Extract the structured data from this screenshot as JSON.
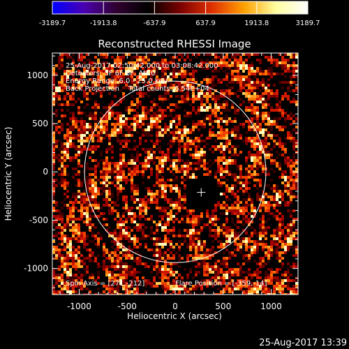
{
  "chart_data": {
    "type": "heatmap",
    "title": "Reconstructed RHESSI Image",
    "xlabel": "Heliocentric X (arcsec)",
    "ylabel": "Heliocentric Y (arcsec)",
    "xlim": [
      -1280,
      1280
    ],
    "ylim": [
      -1270,
      1230
    ],
    "xticks": [
      -1000,
      -500,
      0,
      500,
      1000
    ],
    "yticks": [
      -1000,
      -500,
      0,
      500,
      1000
    ],
    "colorbar": {
      "range": [
        -3189.7,
        3189.7
      ],
      "tick_labels": [
        "-3189.7",
        "-1913.8",
        "-637.9",
        "637.9",
        "1913.8",
        "3189.7"
      ],
      "colormap": [
        "#0000ff",
        "#4b00b0",
        "#300030",
        "#000000",
        "#7a0000",
        "#e03000",
        "#ffa000",
        "#ffffa0",
        "#ffffff"
      ]
    },
    "info_lines": [
      "25-Aug-2017 02:50:42.000 to 03:08:42.000",
      "Detectors: 3F 6F 8F, Att 0",
      "Energy Range: 6.0 - 25.0 keV",
      "Back Projection    Total counts: 6.54E+04"
    ],
    "spin_axis": "Spin Axis = [271,-212]",
    "flare_position": "Flare Position = [-359,-14]",
    "solar_limb_radius_arcsec": 945,
    "image_center_marker": [
      271,
      -212
    ],
    "timestamp": "25-Aug-2017 13:39"
  },
  "colors": {
    "background": "#000000",
    "axes": "#ffffff",
    "limb": "#ffffff"
  }
}
